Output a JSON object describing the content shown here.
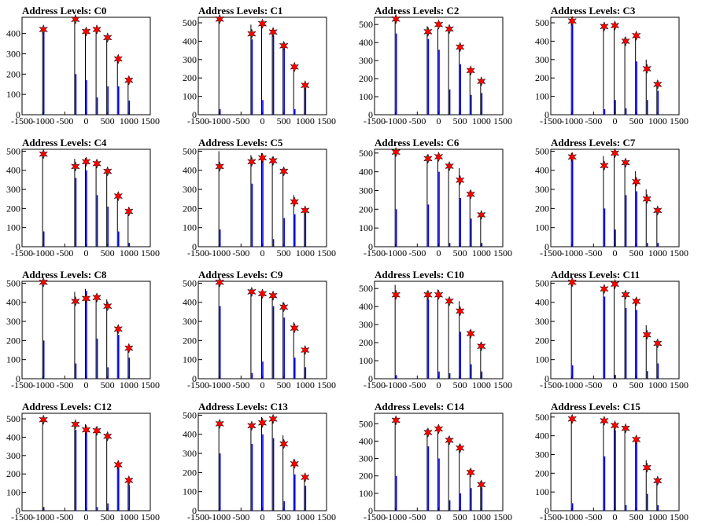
{
  "colors": {
    "bar": "#0000ff",
    "marker": "#ff0000",
    "axis": "#000000"
  },
  "chart_data": [
    {
      "type": "bar",
      "title": "Address Levels: C0",
      "xlim": [
        -1500,
        1500
      ],
      "ylim": [
        0,
        480
      ],
      "xticks": [
        -1500,
        -1000,
        -500,
        0,
        500,
        1000,
        1500
      ],
      "yticks": [
        0,
        100,
        200,
        300,
        400
      ],
      "x": [
        -1000,
        -250,
        0,
        250,
        500,
        750,
        1000
      ],
      "peaks": [
        420,
        470,
        410,
        420,
        380,
        275,
        170
      ],
      "markers": [
        420,
        470,
        410,
        420,
        380,
        275,
        170
      ],
      "bars": [
        410,
        200,
        170,
        85,
        140,
        140,
        70
      ]
    },
    {
      "type": "bar",
      "title": "Address Levels: C1",
      "xlim": [
        -1500,
        1500
      ],
      "ylim": [
        0,
        530
      ],
      "xticks": [
        -1500,
        -1000,
        -500,
        0,
        500,
        1000,
        1500
      ],
      "yticks": [
        0,
        100,
        200,
        300,
        400,
        500
      ],
      "x": [
        -1000,
        -250,
        0,
        250,
        500,
        750,
        1000
      ],
      "peaks": [
        525,
        490,
        500,
        460,
        390,
        270,
        160
      ],
      "markers": [
        520,
        440,
        495,
        450,
        375,
        260,
        160
      ],
      "bars": [
        30,
        410,
        80,
        430,
        380,
        30,
        150
      ]
    },
    {
      "type": "bar",
      "title": "Address Levels: C2",
      "xlim": [
        -1500,
        1500
      ],
      "ylim": [
        0,
        540
      ],
      "xticks": [
        -1500,
        -1000,
        -500,
        0,
        500,
        1000,
        1500
      ],
      "yticks": [
        0,
        100,
        200,
        300,
        400,
        500
      ],
      "x": [
        -1000,
        -250,
        0,
        250,
        500,
        750,
        1000
      ],
      "peaks": [
        535,
        490,
        480,
        480,
        385,
        260,
        195
      ],
      "markers": [
        530,
        460,
        500,
        475,
        375,
        245,
        185
      ],
      "bars": [
        450,
        420,
        360,
        140,
        280,
        110,
        120
      ]
    },
    {
      "type": "bar",
      "title": "Address Levels: C3",
      "xlim": [
        -1500,
        1500
      ],
      "ylim": [
        0,
        530
      ],
      "xticks": [
        -1500,
        -1000,
        -500,
        0,
        500,
        1000,
        1500
      ],
      "yticks": [
        0,
        100,
        200,
        300,
        400,
        500
      ],
      "x": [
        -1000,
        -250,
        0,
        250,
        500,
        750,
        1000
      ],
      "peaks": [
        520,
        480,
        500,
        420,
        440,
        300,
        170
      ],
      "markers": [
        510,
        480,
        485,
        400,
        430,
        250,
        165
      ],
      "bars": [
        500,
        30,
        80,
        35,
        290,
        80,
        130
      ]
    },
    {
      "type": "bar",
      "title": "Address Levels: C4",
      "xlim": [
        -1500,
        1500
      ],
      "ylim": [
        0,
        510
      ],
      "xticks": [
        -1500,
        -1000,
        -500,
        0,
        500,
        1000,
        1500
      ],
      "yticks": [
        0,
        100,
        200,
        300,
        400,
        500
      ],
      "x": [
        -1000,
        -250,
        0,
        250,
        500,
        750,
        1000
      ],
      "peaks": [
        495,
        460,
        465,
        450,
        405,
        275,
        190
      ],
      "markers": [
        485,
        420,
        445,
        435,
        395,
        265,
        185
      ],
      "bars": [
        80,
        360,
        400,
        270,
        210,
        80,
        20
      ]
    },
    {
      "type": "bar",
      "title": "Address Levels: C5",
      "xlim": [
        -1500,
        1500
      ],
      "ylim": [
        0,
        510
      ],
      "xticks": [
        -1500,
        -1000,
        -500,
        0,
        500,
        1000,
        1500
      ],
      "yticks": [
        0,
        100,
        200,
        300,
        400,
        500
      ],
      "x": [
        -1000,
        -250,
        0,
        250,
        500,
        750,
        1000
      ],
      "peaks": [
        500,
        480,
        490,
        470,
        410,
        270,
        200
      ],
      "markers": [
        420,
        445,
        465,
        450,
        395,
        235,
        190
      ],
      "bars": [
        90,
        330,
        450,
        40,
        150,
        170,
        180
      ]
    },
    {
      "type": "bar",
      "title": "Address Levels: C6",
      "xlim": [
        -1500,
        1500
      ],
      "ylim": [
        0,
        520
      ],
      "xticks": [
        -1500,
        -1000,
        -500,
        0,
        500,
        1000,
        1500
      ],
      "yticks": [
        0,
        100,
        200,
        300,
        400,
        500
      ],
      "x": [
        -1000,
        -250,
        0,
        250,
        500,
        750,
        1000
      ],
      "peaks": [
        515,
        490,
        495,
        445,
        420,
        300,
        180
      ],
      "markers": [
        505,
        470,
        480,
        430,
        355,
        280,
        170
      ],
      "bars": [
        200,
        225,
        400,
        20,
        260,
        150,
        20
      ]
    },
    {
      "type": "bar",
      "title": "Address Levels: C7",
      "xlim": [
        -1500,
        1500
      ],
      "ylim": [
        0,
        510
      ],
      "xticks": [
        -1500,
        -1000,
        -500,
        0,
        500,
        1000,
        1500
      ],
      "yticks": [
        0,
        100,
        200,
        300,
        400,
        500
      ],
      "x": [
        -1000,
        -250,
        0,
        250,
        500,
        750,
        1000
      ],
      "peaks": [
        490,
        475,
        500,
        455,
        395,
        300,
        200
      ],
      "markers": [
        470,
        425,
        490,
        440,
        340,
        250,
        190
      ],
      "bars": [
        470,
        200,
        90,
        270,
        290,
        20,
        20
      ]
    },
    {
      "type": "bar",
      "title": "Address Levels: C8",
      "xlim": [
        -1500,
        1500
      ],
      "ylim": [
        0,
        510
      ],
      "xticks": [
        -1500,
        -1000,
        -500,
        0,
        500,
        1000,
        1500
      ],
      "yticks": [
        0,
        100,
        200,
        300,
        400,
        500
      ],
      "x": [
        -1000,
        -250,
        0,
        250,
        500,
        750,
        1000
      ],
      "peaks": [
        505,
        455,
        470,
        440,
        415,
        270,
        170
      ],
      "markers": [
        505,
        405,
        420,
        425,
        380,
        260,
        160
      ],
      "bars": [
        200,
        80,
        460,
        210,
        60,
        230,
        110
      ]
    },
    {
      "type": "bar",
      "title": "Address Levels: C9",
      "xlim": [
        -1500,
        1500
      ],
      "ylim": [
        0,
        510
      ],
      "xticks": [
        -1500,
        -1000,
        -500,
        0,
        500,
        1000,
        1500
      ],
      "yticks": [
        0,
        100,
        200,
        300,
        400,
        500
      ],
      "x": [
        -1000,
        -250,
        0,
        250,
        500,
        750,
        1000
      ],
      "peaks": [
        510,
        470,
        455,
        450,
        400,
        295,
        160
      ],
      "markers": [
        505,
        455,
        445,
        435,
        375,
        265,
        150
      ],
      "bars": [
        380,
        30,
        90,
        380,
        320,
        110,
        60
      ]
    },
    {
      "type": "bar",
      "title": "Address Levels: C10",
      "xlim": [
        -1500,
        1500
      ],
      "ylim": [
        0,
        540
      ],
      "xticks": [
        -1500,
        -1000,
        -500,
        0,
        500,
        1000,
        1500
      ],
      "yticks": [
        0,
        100,
        200,
        300,
        400,
        500
      ],
      "x": [
        -1000,
        -250,
        0,
        250,
        500,
        750,
        1000
      ],
      "peaks": [
        520,
        485,
        495,
        445,
        430,
        270,
        200
      ],
      "markers": [
        465,
        465,
        465,
        430,
        375,
        250,
        180
      ],
      "bars": [
        20,
        440,
        40,
        30,
        260,
        80,
        40
      ]
    },
    {
      "type": "bar",
      "title": "Address Levels: C11",
      "xlim": [
        -1500,
        1500
      ],
      "ylim": [
        0,
        510
      ],
      "xticks": [
        -1500,
        -1000,
        -500,
        0,
        500,
        1000,
        1500
      ],
      "yticks": [
        0,
        100,
        200,
        300,
        400,
        500
      ],
      "x": [
        -1000,
        -250,
        0,
        250,
        500,
        750,
        1000
      ],
      "peaks": [
        510,
        475,
        500,
        455,
        420,
        280,
        200
      ],
      "markers": [
        505,
        470,
        495,
        440,
        405,
        230,
        185
      ],
      "bars": [
        70,
        430,
        20,
        370,
        360,
        40,
        80
      ]
    },
    {
      "type": "bar",
      "title": "Address Levels: C12",
      "xlim": [
        -1500,
        1500
      ],
      "ylim": [
        0,
        530
      ],
      "xticks": [
        -1500,
        -1000,
        -500,
        0,
        500,
        1000,
        1500
      ],
      "yticks": [
        0,
        100,
        200,
        300,
        400,
        500
      ],
      "x": [
        -1000,
        -250,
        0,
        250,
        500,
        750,
        1000
      ],
      "peaks": [
        505,
        480,
        470,
        455,
        420,
        260,
        170
      ],
      "markers": [
        495,
        470,
        440,
        435,
        405,
        250,
        165
      ],
      "bars": [
        20,
        440,
        440,
        20,
        40,
        240,
        140
      ]
    },
    {
      "type": "bar",
      "title": "Address Levels: C13",
      "xlim": [
        -1500,
        1500
      ],
      "ylim": [
        0,
        510
      ],
      "xticks": [
        -1500,
        -1000,
        -500,
        0,
        500,
        1000,
        1500
      ],
      "yticks": [
        0,
        100,
        200,
        300,
        400,
        500
      ],
      "x": [
        -1000,
        -250,
        0,
        250,
        500,
        750,
        1000
      ],
      "peaks": [
        470,
        455,
        490,
        490,
        395,
        270,
        185
      ],
      "markers": [
        455,
        445,
        460,
        480,
        350,
        245,
        175
      ],
      "bars": [
        300,
        350,
        400,
        380,
        50,
        190,
        130
      ]
    },
    {
      "type": "bar",
      "title": "Address Levels: C14",
      "xlim": [
        -1500,
        1500
      ],
      "ylim": [
        0,
        560
      ],
      "xticks": [
        -1500,
        -1000,
        -500,
        0,
        500,
        1000,
        1500
      ],
      "yticks": [
        0,
        100,
        200,
        300,
        400,
        500
      ],
      "x": [
        -1000,
        -250,
        0,
        250,
        500,
        750,
        1000
      ],
      "peaks": [
        530,
        470,
        490,
        425,
        380,
        240,
        170
      ],
      "markers": [
        520,
        450,
        470,
        405,
        360,
        220,
        150
      ],
      "bars": [
        200,
        370,
        300,
        60,
        100,
        130,
        130
      ]
    },
    {
      "type": "bar",
      "title": "Address Levels: C15",
      "xlim": [
        -1500,
        1500
      ],
      "ylim": [
        0,
        520
      ],
      "xticks": [
        -1500,
        -1000,
        -500,
        0,
        500,
        1000,
        1500
      ],
      "yticks": [
        0,
        100,
        200,
        300,
        400,
        500
      ],
      "x": [
        -1000,
        -250,
        0,
        250,
        500,
        750,
        1000
      ],
      "peaks": [
        495,
        490,
        460,
        450,
        390,
        270,
        175
      ],
      "markers": [
        490,
        480,
        455,
        440,
        380,
        230,
        160
      ],
      "bars": [
        40,
        290,
        430,
        30,
        370,
        90,
        30
      ]
    }
  ]
}
